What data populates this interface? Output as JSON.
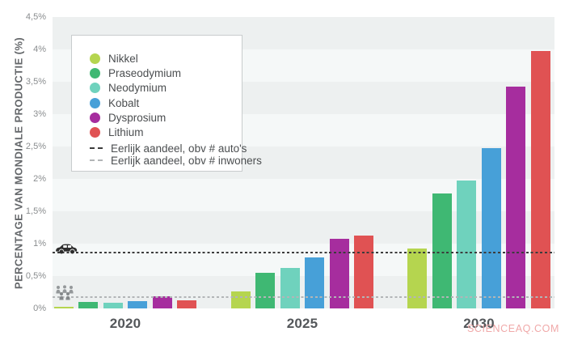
{
  "watermark": "SCIENCEAQ.COM",
  "chart_data": {
    "type": "bar",
    "title": "",
    "ylabel": "PERCENTAGE VAN MONDIALE PRODUCTIE (%)",
    "xlabel": "",
    "categories": [
      "2020",
      "2025",
      "2030"
    ],
    "series": [
      {
        "name": "Nikkel",
        "color": "#b5d54f",
        "values": [
          0.03,
          0.26,
          0.93
        ]
      },
      {
        "name": "Praseodymium",
        "color": "#3fb873",
        "values": [
          0.1,
          0.55,
          1.78
        ]
      },
      {
        "name": "Neodymium",
        "color": "#6fd2bd",
        "values": [
          0.09,
          0.63,
          1.98
        ]
      },
      {
        "name": "Kobalt",
        "color": "#47a0d8",
        "values": [
          0.11,
          0.79,
          2.48
        ]
      },
      {
        "name": "Dysprosium",
        "color": "#a62d9e",
        "values": [
          0.19,
          1.08,
          3.43
        ]
      },
      {
        "name": "Lithium",
        "color": "#e05253",
        "values": [
          0.13,
          1.12,
          3.97
        ]
      }
    ],
    "reference_lines": [
      {
        "label": "Eerlijk aandeel, obv # auto's",
        "value": 0.86,
        "color": "#3c3c3c",
        "style": "dashed",
        "icon": "car-icon"
      },
      {
        "label": "Eerlijk aandeel, obv # inwoners",
        "value": 0.18,
        "color": "#b2b5b7",
        "style": "dashed",
        "icon": "people-icon"
      }
    ],
    "ylim": [
      0,
      4.5
    ],
    "yticks": [
      {
        "label": "4,5%",
        "value": 4.5
      },
      {
        "label": "4%",
        "value": 4.0
      },
      {
        "label": "3,5%",
        "value": 3.5
      },
      {
        "label": "3%",
        "value": 3.0
      },
      {
        "label": "2,5%",
        "value": 2.5
      },
      {
        "label": "2%",
        "value": 2.0
      },
      {
        "label": "1,5%",
        "value": 1.5
      },
      {
        "label": "1%",
        "value": 1.0
      },
      {
        "label": "0,5%",
        "value": 0.5
      },
      {
        "label": "0%",
        "value": 0.0
      }
    ],
    "grid": "striped-bands",
    "legend_position": "top-left",
    "stripe_colors": [
      "#edf0f0",
      "#f5f8f8"
    ]
  }
}
